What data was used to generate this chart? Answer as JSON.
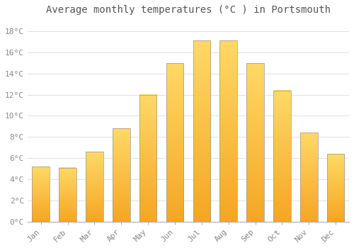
{
  "title": "Average monthly temperatures (°C ) in Portsmouth",
  "months": [
    "Jan",
    "Feb",
    "Mar",
    "Apr",
    "May",
    "Jun",
    "Jul",
    "Aug",
    "Sep",
    "Oct",
    "Nov",
    "Dec"
  ],
  "values": [
    5.2,
    5.1,
    6.6,
    8.8,
    12.0,
    15.0,
    17.1,
    17.1,
    15.0,
    12.4,
    8.4,
    6.4
  ],
  "bar_color_bottom": "#F5A623",
  "bar_color_top": "#FFD966",
  "bar_edge_color": "#999999",
  "background_color": "#FFFFFF",
  "grid_color": "#E0E0E0",
  "ylim": [
    0,
    19
  ],
  "yticks": [
    0,
    2,
    4,
    6,
    8,
    10,
    12,
    14,
    16,
    18
  ],
  "title_fontsize": 10,
  "tick_fontsize": 8,
  "title_color": "#555555",
  "tick_color": "#888888"
}
